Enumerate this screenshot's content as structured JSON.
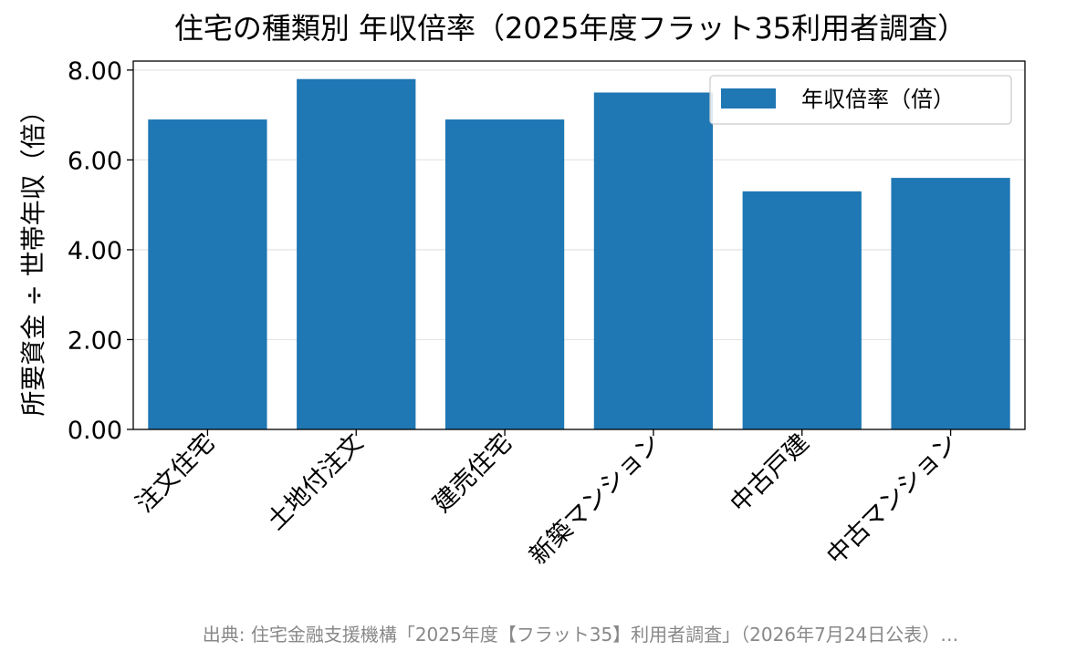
{
  "chart_data": {
    "type": "bar",
    "title": "住宅の種類別 年収倍率（2025年度フラット35利用者調査）",
    "xlabel": "",
    "ylabel": "所要資金 ÷ 世帯年収（倍）",
    "categories": [
      "注文住宅",
      "土地付注文",
      "建売住宅",
      "新築マンション",
      "中古戸建",
      "中古マンション"
    ],
    "series": [
      {
        "name": "年収倍率（倍）",
        "values": [
          6.9,
          7.8,
          6.9,
          7.5,
          5.3,
          5.6
        ],
        "color": "#1f77b4"
      }
    ],
    "ylim": [
      0,
      8.2
    ],
    "yticks": [
      "0.00",
      "2.00",
      "4.00",
      "6.00",
      "8.00"
    ],
    "grid": true,
    "legend_position": "top-right",
    "source_note": "出典: 住宅金融支援機構「2025年度【フラット35】利用者調査」（2026年7月24日公表）…"
  }
}
